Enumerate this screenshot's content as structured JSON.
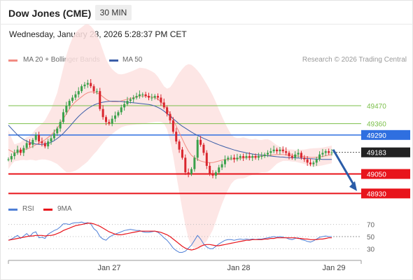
{
  "header": {
    "instrument": "Dow Jones (CME)",
    "timeframe": "30 MIN",
    "datetime": "Wednesday, January 28, 2026 5:28:37 PM CET"
  },
  "legend": {
    "items": [
      {
        "label": "MA 20 + Bollinger Bands",
        "color": "#f28b82"
      },
      {
        "label": "MA 50",
        "color": "#3b5ea8"
      }
    ],
    "credit": "Research © 2026 Trading Central"
  },
  "chart_data": [
    {
      "type": "line",
      "description": "Candlestick price chart (30 min) with MA20 + Bollinger Bands and MA50",
      "title": "",
      "price_range": [
        48880,
        49690
      ],
      "x_ticks": [
        "Jan 27",
        "Jan 28",
        "Jan 29"
      ],
      "current_price": {
        "value": 49183,
        "label": "49183",
        "color": "#222222"
      },
      "levels": [
        {
          "value": 49470,
          "label": "49470",
          "kind": "resistance",
          "color": "#7bbf4a"
        },
        {
          "value": 49360,
          "label": "49360",
          "kind": "resistance",
          "color": "#7bbf4a"
        },
        {
          "value": 49290,
          "label": "49290",
          "kind": "pivot",
          "color": "#2f6fe0"
        },
        {
          "value": 49050,
          "label": "49050",
          "kind": "support",
          "color": "#e8141b"
        },
        {
          "value": 48930,
          "label": "48930",
          "kind": "support",
          "color": "#e8141b"
        }
      ],
      "forecast_arrow": {
        "from": 49200,
        "to": 48945,
        "color": "#2a5ca8"
      },
      "close_series": [
        49140,
        49160,
        49180,
        49200,
        49180,
        49210,
        49240,
        49230,
        49260,
        49290,
        49250,
        49240,
        49220,
        49250,
        49270,
        49300,
        49330,
        49370,
        49430,
        49470,
        49500,
        49520,
        49540,
        49560,
        49590,
        49600,
        49610,
        49590,
        49560,
        49560,
        49450,
        49400,
        49370,
        49360,
        49390,
        49410,
        49430,
        49460,
        49480,
        49500,
        49510,
        49520,
        49530,
        49540,
        49540,
        49530,
        49520,
        49520,
        49530,
        49520,
        49490,
        49460,
        49420,
        49380,
        49310,
        49250,
        49200,
        49150,
        49060,
        49050,
        49080,
        49150,
        49260,
        49230,
        49180,
        49100,
        49050,
        49040,
        49060,
        49090,
        49110,
        49140,
        49150,
        49150,
        49140,
        49150,
        49160,
        49150,
        49160,
        49150,
        49160,
        49150,
        49160,
        49160,
        49170,
        49180,
        49190,
        49200,
        49190,
        49200,
        49190,
        49180,
        49160,
        49150,
        49170,
        49180,
        49150,
        49140,
        49120,
        49110,
        49120,
        49140,
        49170,
        49180,
        49190,
        49180,
        49183
      ],
      "ma20": [
        49200,
        49190,
        49180,
        49185,
        49190,
        49200,
        49205,
        49210,
        49220,
        49230,
        49240,
        49250,
        49260,
        49275,
        49290,
        49310,
        49330,
        49360,
        49390,
        49420,
        49450,
        49475,
        49495,
        49510,
        49525,
        49540,
        49550,
        49555,
        49555,
        49550,
        49540,
        49525,
        49510,
        49500,
        49495,
        49495,
        49495,
        49500,
        49505,
        49510,
        49515,
        49520,
        49525,
        49530,
        49530,
        49530,
        49528,
        49525,
        49520,
        49510,
        49495,
        49475,
        49450,
        49420,
        49385,
        49345,
        49305,
        49265,
        49225,
        49190,
        49165,
        49150,
        49140,
        49130,
        49125,
        49120,
        49120,
        49120,
        49125,
        49130,
        49135,
        49138,
        49140,
        49142,
        49143,
        49145,
        49147,
        49149,
        49150,
        49152,
        49154,
        49156,
        49158,
        49160,
        49162,
        49164,
        49166,
        49168,
        49170,
        49170,
        49170,
        49168,
        49166,
        49164,
        49162,
        49160,
        49158,
        49156,
        49154,
        49152,
        49152,
        49153,
        49155,
        49158,
        49162,
        49166,
        49170
      ],
      "ma50": [
        49350,
        49330,
        49310,
        49290,
        49275,
        49262,
        49252,
        49244,
        49238,
        49234,
        49232,
        49232,
        49234,
        49238,
        49245,
        49255,
        49268,
        49283,
        49300,
        49320,
        49340,
        49362,
        49384,
        49404,
        49422,
        49438,
        49452,
        49464,
        49474,
        49482,
        49488,
        49492,
        49495,
        49497,
        49498,
        49498,
        49497,
        49496,
        49494,
        49492,
        49490,
        49488,
        49486,
        49484,
        49482,
        49480,
        49478,
        49474,
        49468,
        49460,
        49450,
        49437,
        49422,
        49406,
        49390,
        49374,
        49358,
        49344,
        49332,
        49320,
        49308,
        49297,
        49287,
        49278,
        49269,
        49261,
        49253,
        49245,
        49237,
        49230,
        49223,
        49216,
        49210,
        49204,
        49198,
        49193,
        49188,
        49184,
        49180,
        49176,
        49173,
        49170,
        49168,
        49166,
        49164,
        49162,
        49160,
        49158,
        49156,
        49155,
        49154,
        49152,
        49151,
        49150,
        49149,
        49148,
        49147,
        49146,
        49145,
        49144,
        49143,
        49142,
        49141,
        49140,
        49140,
        49140,
        49140
      ]
    },
    {
      "type": "line",
      "description": "RSI with 9-period MA",
      "title": "",
      "ylim": [
        20,
        80
      ],
      "y_ticks": [
        70,
        50,
        30
      ],
      "series": [
        {
          "name": "RSI",
          "color": "#4f7fd6",
          "values": [
            44,
            46,
            49,
            52,
            47,
            51,
            55,
            50,
            56,
            58,
            48,
            49,
            47,
            54,
            57,
            60,
            62,
            66,
            71,
            71,
            70,
            72,
            73,
            73,
            74,
            72,
            73,
            71,
            63,
            59,
            50,
            46,
            44,
            49,
            52,
            54,
            56,
            58,
            60,
            61,
            62,
            61,
            60,
            60,
            58,
            57,
            57,
            58,
            59,
            57,
            53,
            48,
            44,
            38,
            31,
            27,
            24,
            24,
            26,
            31,
            36,
            44,
            52,
            46,
            38,
            33,
            30,
            30,
            34,
            38,
            41,
            44,
            45,
            45,
            44,
            45,
            46,
            45,
            46,
            45,
            46,
            45,
            46,
            46,
            47,
            48,
            49,
            50,
            49,
            50,
            49,
            48,
            46,
            45,
            47,
            48,
            45,
            44,
            42,
            41,
            43,
            46,
            49,
            50,
            51,
            50,
            50
          ]
        },
        {
          "name": "9MA",
          "color": "#e8141b",
          "values": [
            44,
            45,
            46,
            47,
            48,
            49,
            50,
            51,
            51,
            52,
            52,
            52,
            51,
            52,
            52,
            53,
            55,
            57,
            60,
            62,
            64,
            66,
            68,
            69,
            70,
            71,
            72,
            72,
            71,
            69,
            67,
            64,
            61,
            58,
            56,
            54,
            53,
            53,
            54,
            55,
            56,
            57,
            58,
            59,
            59,
            59,
            59,
            59,
            59,
            58,
            57,
            55,
            53,
            50,
            46,
            42,
            38,
            34,
            31,
            29,
            28,
            29,
            31,
            34,
            36,
            37,
            37,
            36,
            35,
            35,
            36,
            37,
            38,
            39,
            40,
            41,
            42,
            43,
            44,
            44,
            45,
            45,
            45,
            45,
            46,
            46,
            47,
            47,
            48,
            48,
            48,
            48,
            48,
            48,
            48,
            47,
            47,
            46,
            46,
            45,
            45,
            45,
            46,
            46,
            47,
            48,
            48
          ]
        }
      ]
    }
  ],
  "rsi_legend": {
    "items": [
      {
        "label": "RSI",
        "color": "#4f7fd6"
      },
      {
        "label": "9MA",
        "color": "#e8141b"
      }
    ]
  }
}
